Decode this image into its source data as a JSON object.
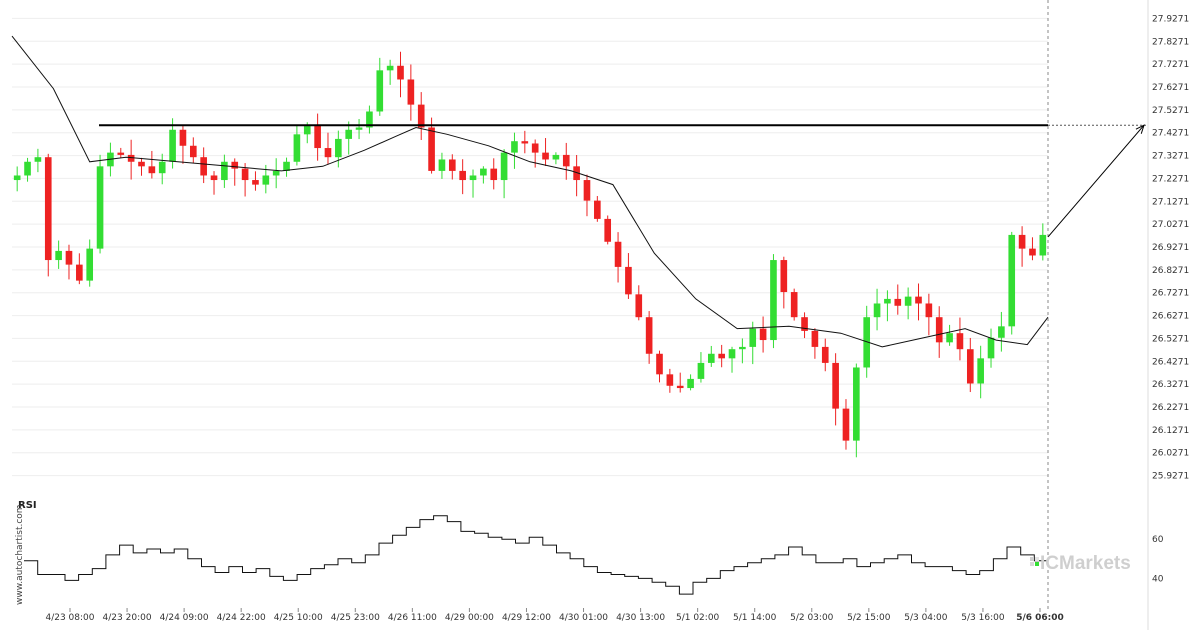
{
  "chart_data": [
    {
      "type": "candlestick",
      "title": "",
      "ylim": [
        25.8771,
        27.9771
      ],
      "y_ticks": [
        "27.9271",
        "27.8271",
        "27.7271",
        "27.6271",
        "27.5271",
        "27.4271",
        "27.3271",
        "27.2271",
        "27.1271",
        "27.0271",
        "26.9271",
        "26.8271",
        "26.7271",
        "26.6271",
        "26.5271",
        "26.4271",
        "26.3271",
        "26.2271",
        "26.1271",
        "26.0271",
        "25.9271"
      ],
      "x_ticks": [
        "4/23 08:00",
        "4/23 20:00",
        "4/24 09:00",
        "4/24 22:00",
        "4/25 10:00",
        "4/25 23:00",
        "4/26 11:00",
        "4/29 00:00",
        "4/29 12:00",
        "4/30 01:00",
        "4/30 13:00",
        "5/1 02:00",
        "5/1 14:00",
        "5/2 03:00",
        "5/2 15:00",
        "5/3 04:00",
        "5/3 16:00",
        "5/6 06:00"
      ],
      "last_x_tick_highlight": "5/6 06:00",
      "up_color": "#33dd33",
      "down_color": "#ee2222",
      "horizontal_level": 27.46,
      "projection_target": 27.46,
      "close_series_approx": [
        27.24,
        27.3,
        27.32,
        26.87,
        26.91,
        26.85,
        26.78,
        26.92,
        27.28,
        27.34,
        27.33,
        27.3,
        27.28,
        27.25,
        27.3,
        27.44,
        27.37,
        27.32,
        27.24,
        27.22,
        27.3,
        27.27,
        27.22,
        27.2,
        27.24,
        27.26,
        27.3,
        27.42,
        27.46,
        27.36,
        27.32,
        27.4,
        27.44,
        27.45,
        27.52,
        27.7,
        27.72,
        27.66,
        27.55,
        27.45,
        27.26,
        27.31,
        27.26,
        27.22,
        27.24,
        27.27,
        27.22,
        27.34,
        27.39,
        27.38,
        27.34,
        27.31,
        27.33,
        27.28,
        27.22,
        27.13,
        27.05,
        26.95,
        26.84,
        26.72,
        26.62,
        26.46,
        26.37,
        26.32,
        26.31,
        26.35,
        26.42,
        26.46,
        26.44,
        26.48,
        26.49,
        26.57,
        26.52,
        26.87,
        26.73,
        26.62,
        26.56,
        26.49,
        26.42,
        26.22,
        26.08,
        26.4,
        26.62,
        26.68,
        26.7,
        26.67,
        26.71,
        26.68,
        26.62,
        26.51,
        26.55,
        26.48,
        26.33,
        26.44,
        26.53,
        26.58,
        26.98,
        26.92,
        26.89,
        26.98
      ],
      "moving_average_approx": [
        [
          0,
          27.85
        ],
        [
          0.04,
          27.62
        ],
        [
          0.075,
          27.3
        ],
        [
          0.11,
          27.32
        ],
        [
          0.16,
          27.3
        ],
        [
          0.21,
          27.28
        ],
        [
          0.26,
          27.26
        ],
        [
          0.3,
          27.28
        ],
        [
          0.34,
          27.35
        ],
        [
          0.37,
          27.41
        ],
        [
          0.39,
          27.45
        ],
        [
          0.42,
          27.42
        ],
        [
          0.46,
          27.37
        ],
        [
          0.5,
          27.3
        ],
        [
          0.54,
          27.26
        ],
        [
          0.58,
          27.2
        ],
        [
          0.62,
          26.9
        ],
        [
          0.66,
          26.7
        ],
        [
          0.7,
          26.57
        ],
        [
          0.75,
          26.58
        ],
        [
          0.8,
          26.55
        ],
        [
          0.84,
          26.49
        ],
        [
          0.88,
          26.53
        ],
        [
          0.92,
          26.57
        ],
        [
          0.95,
          26.52
        ],
        [
          0.98,
          26.5
        ],
        [
          1.0,
          26.62
        ]
      ]
    },
    {
      "type": "line",
      "title": "RSI",
      "ylim": [
        30,
        80
      ],
      "y_ticks": [
        "60",
        "40"
      ],
      "values": [
        49,
        42,
        42,
        39,
        42,
        45,
        52,
        57,
        53,
        55,
        53,
        55,
        50,
        46,
        43,
        46,
        43,
        45,
        41,
        39,
        42,
        45,
        47,
        50,
        48,
        52,
        58,
        62,
        66,
        70,
        72,
        69,
        64,
        63,
        61,
        60,
        58,
        61,
        57,
        53,
        50,
        46,
        43,
        42,
        41,
        40,
        38,
        36,
        32,
        38,
        40,
        44,
        46,
        48,
        50,
        52,
        56,
        52,
        48,
        48,
        50,
        46,
        48,
        50,
        52,
        48,
        46,
        46,
        44,
        42,
        44,
        50,
        56,
        52,
        49,
        47
      ]
    }
  ],
  "rsi_label": "RSI",
  "watermark": "www.autochartist.com",
  "brand": "ICMarkets",
  "colors": {
    "up": "#33dd33",
    "down": "#ee2222",
    "line": "#111111",
    "grid": "#eeeeee",
    "brand": "#cfcfcf"
  }
}
